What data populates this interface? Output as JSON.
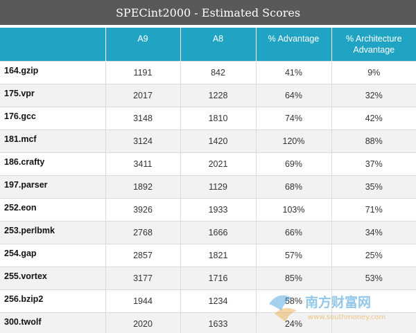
{
  "title": "SPECint2000 - Estimated Scores",
  "chart_data": {
    "type": "table",
    "title": "SPECint2000 - Estimated Scores",
    "columns": [
      "",
      "A9",
      "A8",
      "% Advantage",
      "% Architecture Advantage"
    ],
    "rows": [
      {
        "name": "164.gzip",
        "a9": "1191",
        "a8": "842",
        "adv": "41%",
        "arch": "9%"
      },
      {
        "name": "175.vpr",
        "a9": "2017",
        "a8": "1228",
        "adv": "64%",
        "arch": "32%"
      },
      {
        "name": "176.gcc",
        "a9": "3148",
        "a8": "1810",
        "adv": "74%",
        "arch": "42%"
      },
      {
        "name": "181.mcf",
        "a9": "3124",
        "a8": "1420",
        "adv": "120%",
        "arch": "88%"
      },
      {
        "name": "186.crafty",
        "a9": "3411",
        "a8": "2021",
        "adv": "69%",
        "arch": "37%"
      },
      {
        "name": "197.parser",
        "a9": "1892",
        "a8": "1129",
        "adv": "68%",
        "arch": "35%"
      },
      {
        "name": "252.eon",
        "a9": "3926",
        "a8": "1933",
        "adv": "103%",
        "arch": "71%"
      },
      {
        "name": "253.perlbmk",
        "a9": "2768",
        "a8": "1666",
        "adv": "66%",
        "arch": "34%"
      },
      {
        "name": "254.gap",
        "a9": "2857",
        "a8": "1821",
        "adv": "57%",
        "arch": "25%"
      },
      {
        "name": "255.vortex",
        "a9": "3177",
        "a8": "1716",
        "adv": "85%",
        "arch": "53%"
      },
      {
        "name": "256.bzip2",
        "a9": "1944",
        "a8": "1234",
        "adv": "58%",
        "arch": ""
      },
      {
        "name": "300.twolf",
        "a9": "2020",
        "a8": "1633",
        "adv": "24%",
        "arch": ""
      }
    ]
  },
  "watermark": {
    "text": "南方财富网",
    "url": "www.southmoney.com",
    "color": "#3a9ad9",
    "accent": "#e8a33c"
  },
  "colors": {
    "title_bg": "#595959",
    "header_bg": "#21a3c4",
    "row_alt": "#f2f2f2"
  }
}
